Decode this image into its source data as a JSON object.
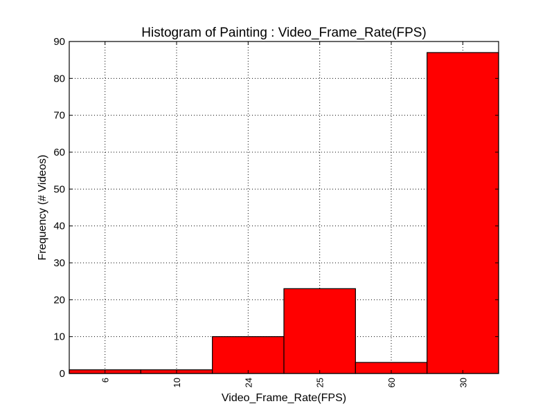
{
  "chart_data": {
    "type": "bar",
    "title": "Histogram of Painting : Video_Frame_Rate(FPS)",
    "xlabel": "Video_Frame_Rate(FPS)",
    "ylabel": "Frequency (# Videos)",
    "categories": [
      "6",
      "10",
      "24",
      "25",
      "60",
      "30"
    ],
    "values": [
      1,
      1,
      10,
      23,
      3,
      87
    ],
    "ylim": [
      0,
      90
    ],
    "yticks": [
      "0",
      "10",
      "20",
      "30",
      "40",
      "50",
      "60",
      "70",
      "80",
      "90"
    ],
    "grid": true,
    "legend": "none",
    "bar_color": "#ff0000",
    "edge_color": "#000000"
  }
}
